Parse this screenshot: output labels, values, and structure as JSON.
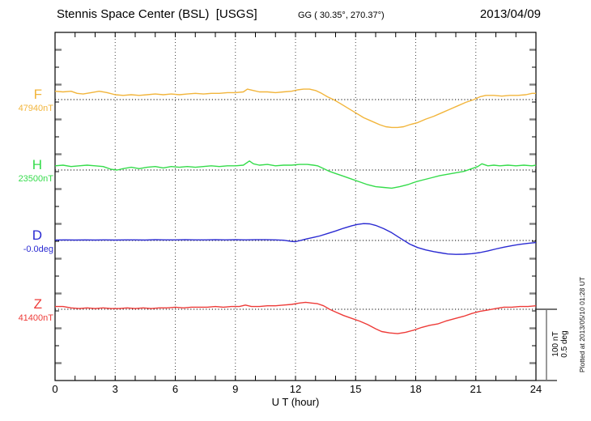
{
  "header": {
    "station_title": "Stennis Space Center (BSL)  [USGS]",
    "coords": "GG ( 30.35°, 270.37°)",
    "date": "2013/04/09"
  },
  "side": {
    "plotted_at": "Plotted at 2013/05/10 01:28 UT",
    "scalebar_lines": [
      "100 nT",
      "0.5 deg"
    ]
  },
  "chart_data": {
    "type": "line",
    "title": "Stennis Space Center (BSL) [USGS] magnetogram",
    "date": "2013/04/09",
    "xlabel": "U T (hour)",
    "x_ticks": [
      0,
      3,
      6,
      9,
      12,
      15,
      18,
      21,
      24
    ],
    "xlim": [
      0,
      24
    ],
    "grid": "dotted vertical lines every 3 h; dotted horizontal baseline per channel",
    "legend_position": "left margin",
    "scale_per_division": {
      "nT": 100,
      "deg": 0.5
    },
    "series": [
      {
        "name": "F",
        "reference": "47940nT",
        "unit": "nT",
        "color": "#F2B53B",
        "points": [
          [
            0,
            12
          ],
          [
            0.4,
            11
          ],
          [
            0.8,
            12
          ],
          [
            1.1,
            9
          ],
          [
            1.4,
            8
          ],
          [
            1.8,
            10
          ],
          [
            2.2,
            12
          ],
          [
            2.6,
            10
          ],
          [
            3.0,
            7
          ],
          [
            3.4,
            6
          ],
          [
            3.8,
            7
          ],
          [
            4.2,
            6
          ],
          [
            4.6,
            7
          ],
          [
            5.0,
            8
          ],
          [
            5.4,
            7
          ],
          [
            5.8,
            8
          ],
          [
            6.2,
            7
          ],
          [
            6.6,
            8
          ],
          [
            7.0,
            9
          ],
          [
            7.4,
            8
          ],
          [
            7.8,
            9
          ],
          [
            8.2,
            9
          ],
          [
            8.6,
            10
          ],
          [
            9.0,
            10
          ],
          [
            9.4,
            11
          ],
          [
            9.6,
            15
          ],
          [
            9.9,
            13
          ],
          [
            10.2,
            11
          ],
          [
            10.6,
            11
          ],
          [
            11.0,
            10
          ],
          [
            11.4,
            11
          ],
          [
            11.8,
            12
          ],
          [
            12.1,
            14
          ],
          [
            12.4,
            15
          ],
          [
            12.7,
            15
          ],
          [
            13.0,
            13
          ],
          [
            13.3,
            9
          ],
          [
            13.6,
            4
          ],
          [
            13.9,
            0
          ],
          [
            14.2,
            -5
          ],
          [
            14.6,
            -12
          ],
          [
            15.0,
            -19
          ],
          [
            15.4,
            -26
          ],
          [
            15.8,
            -31
          ],
          [
            16.2,
            -36
          ],
          [
            16.5,
            -39
          ],
          [
            16.8,
            -40
          ],
          [
            17.1,
            -40
          ],
          [
            17.4,
            -39
          ],
          [
            17.7,
            -36
          ],
          [
            18.1,
            -33
          ],
          [
            18.5,
            -28
          ],
          [
            18.9,
            -24
          ],
          [
            19.3,
            -19
          ],
          [
            19.7,
            -14
          ],
          [
            20.1,
            -9
          ],
          [
            20.5,
            -4
          ],
          [
            20.9,
            0
          ],
          [
            21.2,
            4
          ],
          [
            21.5,
            6
          ],
          [
            21.9,
            6
          ],
          [
            22.3,
            5
          ],
          [
            22.7,
            6
          ],
          [
            23.1,
            6
          ],
          [
            23.5,
            7
          ],
          [
            23.8,
            9
          ],
          [
            24,
            9
          ]
        ]
      },
      {
        "name": "H",
        "reference": "23500nT",
        "unit": "nT",
        "color": "#35DC4B",
        "points": [
          [
            0,
            6
          ],
          [
            0.4,
            7
          ],
          [
            0.8,
            5
          ],
          [
            1.2,
            6
          ],
          [
            1.6,
            7
          ],
          [
            2.0,
            6
          ],
          [
            2.4,
            5
          ],
          [
            2.8,
            1
          ],
          [
            3.1,
            0
          ],
          [
            3.4,
            2
          ],
          [
            3.8,
            4
          ],
          [
            4.2,
            2
          ],
          [
            4.6,
            4
          ],
          [
            5.0,
            5
          ],
          [
            5.4,
            3
          ],
          [
            5.8,
            5
          ],
          [
            6.2,
            4
          ],
          [
            6.6,
            5
          ],
          [
            7.0,
            4
          ],
          [
            7.4,
            5
          ],
          [
            7.8,
            6
          ],
          [
            8.2,
            5
          ],
          [
            8.6,
            6
          ],
          [
            9.0,
            6
          ],
          [
            9.4,
            7
          ],
          [
            9.7,
            13
          ],
          [
            9.9,
            9
          ],
          [
            10.2,
            7
          ],
          [
            10.6,
            8
          ],
          [
            11.0,
            6
          ],
          [
            11.4,
            7
          ],
          [
            11.8,
            7
          ],
          [
            12.2,
            8
          ],
          [
            12.6,
            8
          ],
          [
            12.9,
            7
          ],
          [
            13.1,
            6
          ],
          [
            13.4,
            2
          ],
          [
            13.7,
            -2
          ],
          [
            14.0,
            -5
          ],
          [
            14.4,
            -9
          ],
          [
            14.8,
            -13
          ],
          [
            15.2,
            -17
          ],
          [
            15.6,
            -21
          ],
          [
            16.0,
            -24
          ],
          [
            16.4,
            -25
          ],
          [
            16.8,
            -26
          ],
          [
            17.2,
            -24
          ],
          [
            17.6,
            -21
          ],
          [
            18.0,
            -17
          ],
          [
            18.4,
            -14
          ],
          [
            18.8,
            -11
          ],
          [
            19.2,
            -8
          ],
          [
            19.6,
            -6
          ],
          [
            20.0,
            -4
          ],
          [
            20.4,
            -2
          ],
          [
            20.8,
            2
          ],
          [
            21.1,
            5
          ],
          [
            21.3,
            9
          ],
          [
            21.6,
            6
          ],
          [
            21.9,
            7
          ],
          [
            22.2,
            6
          ],
          [
            22.6,
            7
          ],
          [
            23.0,
            6
          ],
          [
            23.4,
            7
          ],
          [
            23.8,
            6
          ],
          [
            24,
            7
          ]
        ]
      },
      {
        "name": "D",
        "reference": "-0.0deg",
        "unit": "deg",
        "color": "#2A2AD2",
        "points": [
          [
            0,
            0.003
          ],
          [
            0.5,
            0.004
          ],
          [
            1,
            0.003
          ],
          [
            1.5,
            0.004
          ],
          [
            2,
            0.003
          ],
          [
            2.5,
            0.004
          ],
          [
            3,
            0.003
          ],
          [
            3.5,
            0.004
          ],
          [
            4,
            0.004
          ],
          [
            4.5,
            0.003
          ],
          [
            5,
            0.005
          ],
          [
            5.5,
            0.004
          ],
          [
            6,
            0.004
          ],
          [
            6.5,
            0.005
          ],
          [
            7,
            0.004
          ],
          [
            7.5,
            0.004
          ],
          [
            8,
            0.005
          ],
          [
            8.5,
            0.004
          ],
          [
            9,
            0.005
          ],
          [
            9.5,
            0.004
          ],
          [
            10,
            0.005
          ],
          [
            10.5,
            0.005
          ],
          [
            11,
            0.004
          ],
          [
            11.4,
            0.002
          ],
          [
            11.8,
            -0.007
          ],
          [
            12.0,
            -0.009
          ],
          [
            12.3,
            0.002
          ],
          [
            12.6,
            0.013
          ],
          [
            12.9,
            0.022
          ],
          [
            13.2,
            0.032
          ],
          [
            13.6,
            0.05
          ],
          [
            14.0,
            0.068
          ],
          [
            14.4,
            0.088
          ],
          [
            14.8,
            0.105
          ],
          [
            15.1,
            0.115
          ],
          [
            15.4,
            0.121
          ],
          [
            15.7,
            0.119
          ],
          [
            16.0,
            0.108
          ],
          [
            16.4,
            0.085
          ],
          [
            16.8,
            0.056
          ],
          [
            17.1,
            0.028
          ],
          [
            17.4,
            0.001
          ],
          [
            17.7,
            -0.026
          ],
          [
            18.1,
            -0.051
          ],
          [
            18.5,
            -0.068
          ],
          [
            18.9,
            -0.08
          ],
          [
            19.3,
            -0.09
          ],
          [
            19.6,
            -0.097
          ],
          [
            20.0,
            -0.1
          ],
          [
            20.4,
            -0.099
          ],
          [
            20.8,
            -0.095
          ],
          [
            21.2,
            -0.087
          ],
          [
            21.6,
            -0.075
          ],
          [
            22.0,
            -0.061
          ],
          [
            22.4,
            -0.048
          ],
          [
            22.8,
            -0.037
          ],
          [
            23.2,
            -0.028
          ],
          [
            23.6,
            -0.021
          ],
          [
            24,
            -0.015
          ]
        ]
      },
      {
        "name": "Z",
        "reference": "41400nT",
        "unit": "nT",
        "color": "#EE3B38",
        "points": [
          [
            0,
            4
          ],
          [
            0.4,
            4
          ],
          [
            0.8,
            2
          ],
          [
            1.2,
            1
          ],
          [
            1.6,
            2
          ],
          [
            2.0,
            1
          ],
          [
            2.4,
            2
          ],
          [
            2.8,
            1
          ],
          [
            3.2,
            1
          ],
          [
            3.6,
            2
          ],
          [
            4.0,
            1
          ],
          [
            4.4,
            2
          ],
          [
            4.8,
            1
          ],
          [
            5.2,
            2
          ],
          [
            5.6,
            2
          ],
          [
            6.0,
            3
          ],
          [
            6.4,
            2
          ],
          [
            6.8,
            3
          ],
          [
            7.2,
            3
          ],
          [
            7.6,
            3
          ],
          [
            8.0,
            4
          ],
          [
            8.4,
            3
          ],
          [
            8.8,
            4
          ],
          [
            9.2,
            4
          ],
          [
            9.5,
            6
          ],
          [
            9.8,
            4
          ],
          [
            10.2,
            4
          ],
          [
            10.6,
            5
          ],
          [
            11.0,
            5
          ],
          [
            11.4,
            6
          ],
          [
            11.8,
            7
          ],
          [
            12.2,
            9
          ],
          [
            12.5,
            10
          ],
          [
            12.8,
            9
          ],
          [
            13.1,
            8
          ],
          [
            13.4,
            5
          ],
          [
            13.7,
            0
          ],
          [
            14.0,
            -4
          ],
          [
            14.4,
            -9
          ],
          [
            14.8,
            -13
          ],
          [
            15.2,
            -17
          ],
          [
            15.6,
            -22
          ],
          [
            16.0,
            -28
          ],
          [
            16.3,
            -32
          ],
          [
            16.7,
            -34
          ],
          [
            17.1,
            -35
          ],
          [
            17.5,
            -33
          ],
          [
            17.9,
            -30
          ],
          [
            18.3,
            -26
          ],
          [
            18.7,
            -23
          ],
          [
            19.1,
            -21
          ],
          [
            19.5,
            -17
          ],
          [
            20.0,
            -13
          ],
          [
            20.4,
            -10
          ],
          [
            20.8,
            -6
          ],
          [
            21.2,
            -3
          ],
          [
            21.6,
            -1
          ],
          [
            22.0,
            1
          ],
          [
            22.4,
            3
          ],
          [
            22.8,
            3
          ],
          [
            23.2,
            4
          ],
          [
            23.6,
            4
          ],
          [
            24,
            5
          ]
        ]
      }
    ]
  }
}
